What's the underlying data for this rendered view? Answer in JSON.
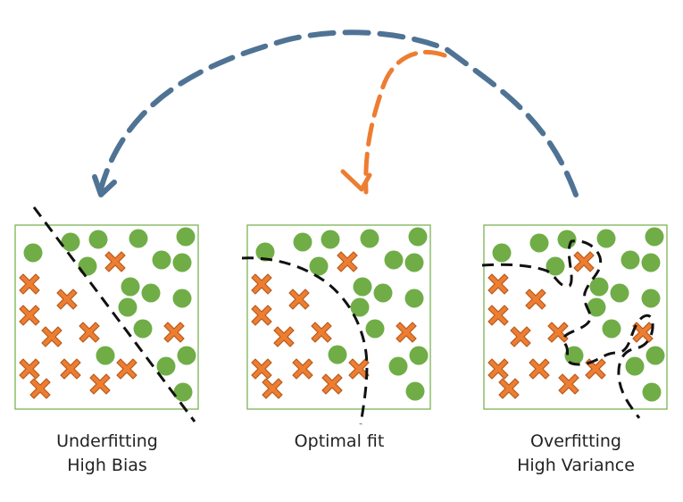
{
  "panels": [
    {
      "id": "underfitting",
      "caption_line1": "Underfitting",
      "caption_line2": "High Bias"
    },
    {
      "id": "optimal",
      "caption_line1": "Optimal fit",
      "caption_line2": ""
    },
    {
      "id": "overfitting",
      "caption_line1": "Overfitting",
      "caption_line2": "High Variance"
    }
  ],
  "colors": {
    "circle_fill": "#70ad47",
    "cross_fill": "#ed7d31",
    "cross_stroke": "#b65a1e",
    "panel_border": "#70ad47",
    "boundary": "#111111",
    "arrow_blue": "#4f7394",
    "arrow_orange": "#ed7d31"
  },
  "legend_icons": {
    "circle": "green-circle-icon",
    "cross": "orange-cross-icon"
  }
}
